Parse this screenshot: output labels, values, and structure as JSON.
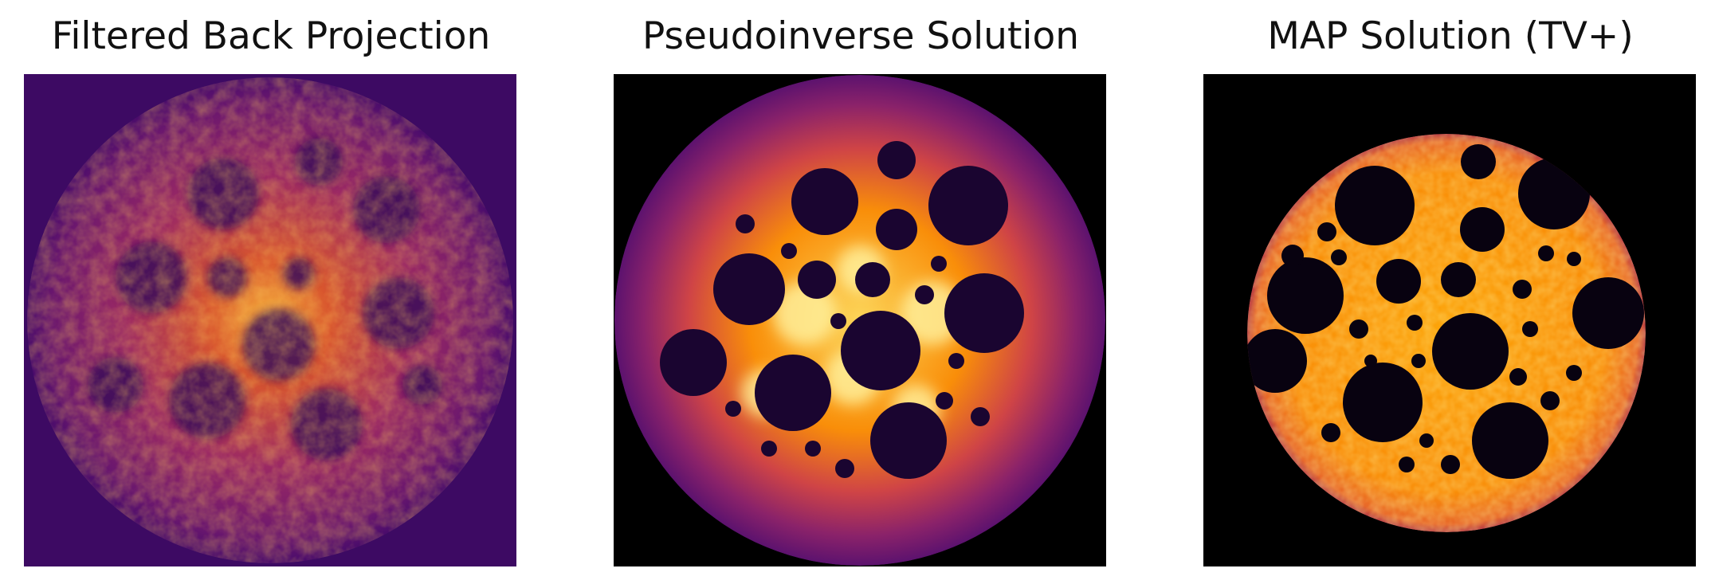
{
  "figure": {
    "panels": [
      {
        "title": "Filtered Back Projection",
        "background": "#3d0a63"
      },
      {
        "title": "Pseudoinverse Solution",
        "background": "#000000"
      },
      {
        "title": "MAP Solution (TV+)",
        "background": "#000000"
      }
    ]
  },
  "colormap": {
    "name": "inferno",
    "dark": "#000004",
    "purple": "#420a68",
    "red": "#bc3754",
    "orange": "#f98e09",
    "yellow": "#fcffa4"
  }
}
